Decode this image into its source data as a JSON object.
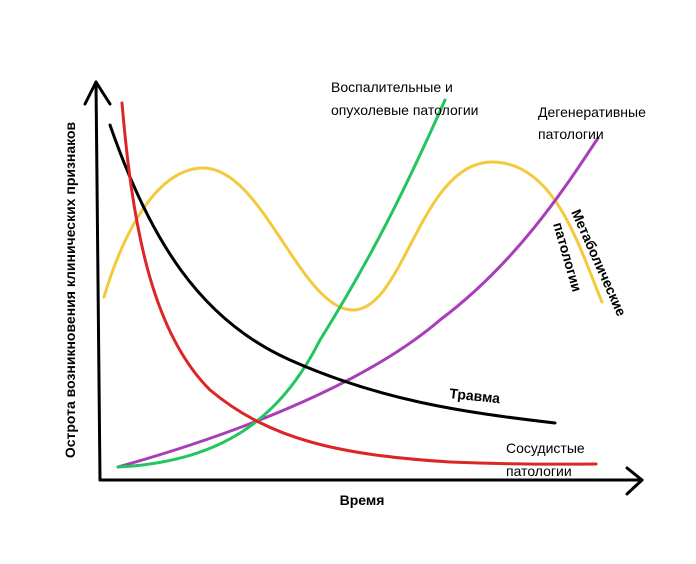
{
  "axes": {
    "x_label": "Время",
    "y_label": "Острота возникновения клинических признаков"
  },
  "curves": {
    "trauma": {
      "label": "Травма",
      "color": "#000000"
    },
    "vascular": {
      "label_line1": "Сосудистые",
      "label_line2": "патологии",
      "color": "#dc2626"
    },
    "inflammatory": {
      "label_line1": "Воспалительные и",
      "label_line2": "опухолевые патологии",
      "color": "#22c55e"
    },
    "degenerative": {
      "label_line1": "Дегенеративные",
      "label_line2": "патологии",
      "color": "#a63fb8"
    },
    "metabolic": {
      "label_line1": "Метаболические",
      "label_line2": "патологии",
      "color": "#f5c93c"
    }
  }
}
